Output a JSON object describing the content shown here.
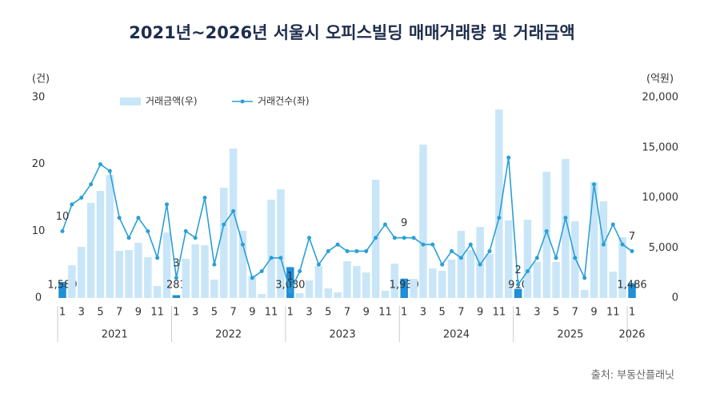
{
  "chart_data": {
    "type": "bar-line",
    "title": "2021년~2026년 서울시 오피스빌딩 매매거래량 및 거래금액",
    "source": "출처: 부동산플래닛",
    "y_label": "(건)",
    "y2_label": "(억원)",
    "categories": [
      "1",
      null,
      "3",
      null,
      "5",
      null,
      "7",
      null,
      "9",
      null,
      "11",
      null,
      "1",
      null,
      "3",
      null,
      "5",
      null,
      "7",
      null,
      "9",
      null,
      "11",
      null,
      "1",
      null,
      "3",
      null,
      "5",
      null,
      "7",
      null,
      "9",
      null,
      "11",
      null,
      "1",
      null,
      "3",
      null,
      "5",
      null,
      "7",
      null,
      "9",
      null,
      "11",
      null,
      "1",
      null,
      "3",
      null,
      "5",
      null,
      "7",
      null,
      "9",
      null,
      "11",
      null,
      "1"
    ],
    "year_groups": [
      {
        "label": "2021",
        "count": 12
      },
      {
        "label": "2022",
        "count": 12
      },
      {
        "label": "2023",
        "count": 12
      },
      {
        "label": "2024",
        "count": 12
      },
      {
        "label": "2025",
        "count": 12
      },
      {
        "label": "2026",
        "count": 1
      }
    ],
    "ylim": [
      0,
      30
    ],
    "yticks": [
      0,
      10,
      20,
      30
    ],
    "y2lim": [
      0,
      20000
    ],
    "y2ticks": [
      0,
      {
        "value": 5000,
        "label": "5,000"
      },
      {
        "value": 10000,
        "label": "10,000"
      },
      {
        "value": 15000,
        "label": "15,000"
      },
      {
        "value": 20000,
        "label": "20,000"
      }
    ],
    "highlight_color": "#1e8fd8",
    "series": [
      {
        "name": "거래금액(우)",
        "kind": "bar",
        "axis": "y2",
        "color": "#c9e6f8",
        "values": [
          1589,
          3270,
          5100,
          9480,
          10680,
          12270,
          4700,
          4780,
          5500,
          4060,
          1200,
          6530,
          281,
          3900,
          5340,
          5260,
          1830,
          11000,
          14900,
          6690,
          2230,
          400,
          9800,
          10840,
          3080,
          480,
          1750,
          3190,
          960,
          560,
          3670,
          3190,
          2550,
          11790,
          720,
          3430,
          1930,
          1910,
          15300,
          2950,
          2710,
          3820,
          6690,
          4780,
          7090,
          4380,
          18800,
          7730,
          910,
          7810,
          3590,
          12590,
          3590,
          13860,
          7650,
          800,
          11550,
          9640,
          2630,
          6060,
          1486
        ],
        "value_labels": [
          "1,589",
          null,
          null,
          null,
          null,
          null,
          null,
          null,
          null,
          null,
          null,
          null,
          "281",
          null,
          null,
          null,
          null,
          null,
          null,
          null,
          null,
          null,
          null,
          null,
          "3,080",
          null,
          null,
          null,
          null,
          null,
          null,
          null,
          null,
          null,
          null,
          null,
          "1,930",
          null,
          null,
          null,
          null,
          null,
          null,
          null,
          null,
          null,
          null,
          null,
          "910",
          null,
          null,
          null,
          null,
          null,
          null,
          null,
          null,
          null,
          null,
          null,
          "1,486"
        ]
      },
      {
        "name": "거래건수(좌)",
        "kind": "line",
        "axis": "y",
        "color": "#2a9fd6",
        "values": [
          10,
          14,
          15,
          17,
          20,
          19,
          12,
          9,
          12,
          10,
          6,
          14,
          3,
          10,
          9,
          15,
          5,
          11,
          13,
          8,
          3,
          4,
          6,
          6,
          1,
          4,
          9,
          5,
          7,
          8,
          7,
          7,
          7,
          9,
          11,
          9,
          9,
          9,
          8,
          8,
          5,
          7,
          6,
          8,
          5,
          7,
          12,
          21,
          2,
          4,
          6,
          10,
          6,
          12,
          6,
          3,
          17,
          8,
          11,
          8,
          7
        ],
        "value_labels": [
          "10",
          null,
          null,
          null,
          null,
          null,
          null,
          null,
          null,
          null,
          null,
          null,
          "3",
          null,
          null,
          null,
          null,
          null,
          null,
          null,
          null,
          null,
          null,
          null,
          "1",
          null,
          null,
          null,
          null,
          null,
          null,
          null,
          null,
          null,
          null,
          null,
          "9",
          null,
          null,
          null,
          null,
          null,
          null,
          null,
          null,
          null,
          null,
          null,
          "2",
          null,
          null,
          null,
          null,
          null,
          null,
          null,
          null,
          null,
          null,
          null,
          "7"
        ]
      }
    ]
  }
}
